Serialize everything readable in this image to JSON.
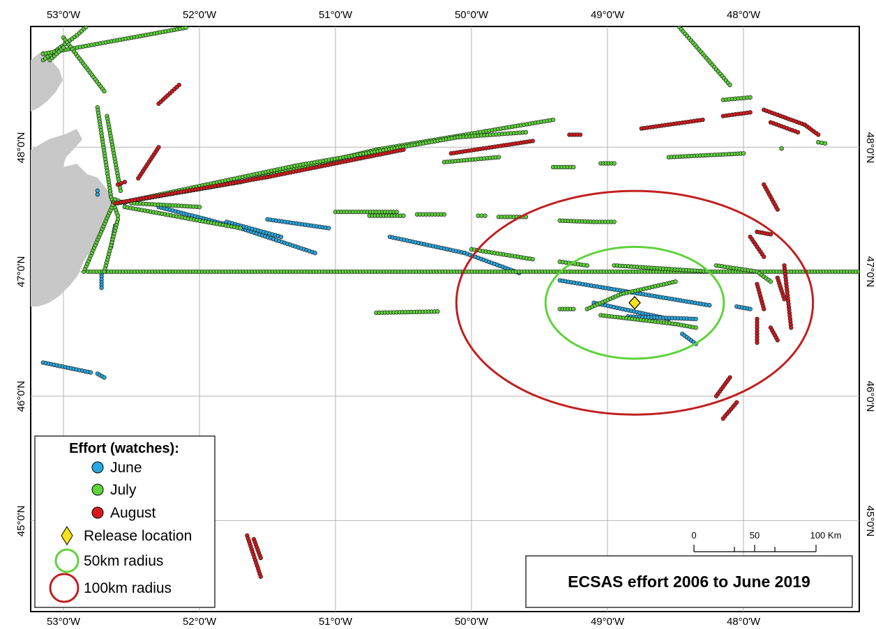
{
  "title": "ECSAS effort 2006 to June 2019",
  "colors": {
    "june": "#2aa7de",
    "july": "#5ed33a",
    "august": "#d7191c",
    "release": "#f7e21a",
    "radius50": "#5ed33a",
    "radius100": "#c0201f",
    "land": "#c8c8c8",
    "grid": "#b4b4b4"
  },
  "axes": {
    "top_lon_labels": [
      "53°0'W",
      "52°0'W",
      "51°0'W",
      "50°0'W",
      "49°0'W",
      "48°0'W"
    ],
    "bottom_lon_labels": [
      "53°0'W",
      "52°0'W",
      "51°0'W",
      "50°0'W",
      "49°0'W",
      "48°0'W"
    ],
    "left_lat_labels": [
      "48°0'N",
      "47°0'N",
      "46°0'N",
      "45°0'N"
    ],
    "right_lat_labels": [
      "48°0'N",
      "47°0'N",
      "46°0'N",
      "45°0'N"
    ]
  },
  "legend": {
    "title": "Effort (watches):",
    "june_label": "June",
    "july_label": "July",
    "august_label": "August",
    "release_label": "Release location",
    "radius50_label": "50km radius",
    "radius100_label": "100km radius"
  },
  "scalebar": {
    "labels": [
      "0",
      "50",
      "100 Km"
    ]
  },
  "release_location": {
    "lon": -48.8,
    "lat": 46.75
  },
  "radii_km": [
    50,
    100
  ],
  "tracks": {
    "june": [
      [
        [
          -52.3,
          47.52
        ],
        [
          -51.7,
          47.35
        ],
        [
          -51.15,
          47.15
        ]
      ],
      [
        [
          -51.8,
          47.4
        ],
        [
          -51.4,
          47.28
        ]
      ],
      [
        [
          -51.5,
          47.42
        ],
        [
          -51.05,
          47.35
        ]
      ],
      [
        [
          -50.6,
          47.28
        ],
        [
          -50.05,
          47.15
        ],
        [
          -49.65,
          46.99
        ]
      ],
      [
        [
          -49.35,
          46.93
        ],
        [
          -48.25,
          46.73
        ]
      ],
      [
        [
          -49.1,
          46.75
        ],
        [
          -48.55,
          46.62
        ]
      ],
      [
        [
          -48.85,
          46.64
        ],
        [
          -48.35,
          46.62
        ]
      ],
      [
        [
          -48.45,
          46.5
        ],
        [
          -48.35,
          46.42
        ]
      ],
      [
        [
          -48.05,
          46.72
        ],
        [
          -47.95,
          46.7
        ]
      ],
      [
        [
          -53.15,
          46.27
        ],
        [
          -52.8,
          46.19
        ]
      ],
      [
        [
          -52.75,
          46.18
        ],
        [
          -52.7,
          46.15
        ]
      ],
      [
        [
          -52.72,
          46.98
        ],
        [
          -52.72,
          46.87
        ]
      ],
      [
        [
          -52.62,
          47.37
        ],
        [
          -52.65,
          47.2
        ]
      ],
      [
        [
          -52.75,
          47.65
        ],
        [
          -52.75,
          47.62
        ]
      ]
    ],
    "july": [
      [
        [
          -53.15,
          48.7
        ],
        [
          -52.9,
          48.9
        ],
        [
          -52.8,
          49.0
        ]
      ],
      [
        [
          -53.15,
          48.75
        ],
        [
          -52.1,
          48.96
        ]
      ],
      [
        [
          -53.0,
          48.88
        ],
        [
          -52.7,
          48.45
        ]
      ],
      [
        [
          -53.1,
          48.7
        ],
        [
          -53.0,
          48.8
        ]
      ],
      [
        [
          -52.75,
          48.32
        ],
        [
          -52.65,
          47.6
        ],
        [
          -52.6,
          47.45
        ]
      ],
      [
        [
          -52.68,
          48.25
        ],
        [
          -52.58,
          47.65
        ]
      ],
      [
        [
          -52.85,
          47.0
        ],
        [
          -52.62,
          47.58
        ],
        [
          -52.55,
          47.55
        ]
      ],
      [
        [
          -52.6,
          47.55
        ],
        [
          -51.7,
          47.72
        ],
        [
          -50.7,
          47.98
        ],
        [
          -49.4,
          48.22
        ]
      ],
      [
        [
          -52.55,
          47.56
        ],
        [
          -51.3,
          47.85
        ],
        [
          -50.1,
          48.08
        ],
        [
          -49.6,
          48.12
        ]
      ],
      [
        [
          -52.5,
          47.55
        ],
        [
          -52.0,
          47.52
        ]
      ],
      [
        [
          -52.55,
          47.52
        ],
        [
          -51.7,
          47.35
        ]
      ],
      [
        [
          -52.82,
          47.0
        ],
        [
          -47.0,
          47.0
        ]
      ],
      [
        [
          -51.0,
          47.48
        ],
        [
          -50.55,
          47.48
        ]
      ],
      [
        [
          -50.75,
          47.45
        ],
        [
          -50.5,
          47.45
        ]
      ],
      [
        [
          -50.4,
          47.46
        ],
        [
          -50.2,
          47.46
        ]
      ],
      [
        [
          -49.95,
          47.45
        ],
        [
          -49.9,
          47.45
        ]
      ],
      [
        [
          -49.8,
          47.44
        ],
        [
          -49.6,
          47.44
        ]
      ],
      [
        [
          -49.35,
          47.41
        ],
        [
          -49.1,
          47.4
        ],
        [
          -48.95,
          47.4
        ]
      ],
      [
        [
          -50.0,
          47.18
        ],
        [
          -49.55,
          47.1
        ]
      ],
      [
        [
          -49.35,
          47.08
        ],
        [
          -49.15,
          47.05
        ]
      ],
      [
        [
          -50.7,
          46.67
        ],
        [
          -50.25,
          46.68
        ]
      ],
      [
        [
          -49.35,
          46.7
        ],
        [
          -49.25,
          46.7
        ]
      ],
      [
        [
          -49.15,
          46.7
        ],
        [
          -48.9,
          46.82
        ],
        [
          -48.5,
          46.92
        ]
      ],
      [
        [
          -49.05,
          46.65
        ],
        [
          -48.5,
          46.58
        ],
        [
          -48.35,
          46.55
        ]
      ],
      [
        [
          -48.95,
          47.05
        ],
        [
          -48.25,
          47.0
        ]
      ],
      [
        [
          -48.2,
          47.05
        ],
        [
          -47.9,
          47.0
        ],
        [
          -47.8,
          46.92
        ]
      ],
      [
        [
          -48.5,
          49.0
        ],
        [
          -48.1,
          48.5
        ]
      ],
      [
        [
          -48.55,
          47.92
        ],
        [
          -48.0,
          47.95
        ]
      ],
      [
        [
          -48.15,
          48.38
        ],
        [
          -47.95,
          48.4
        ]
      ],
      [
        [
          -50.2,
          47.88
        ],
        [
          -49.8,
          47.92
        ]
      ],
      [
        [
          -49.4,
          47.84
        ],
        [
          -49.25,
          47.84
        ]
      ],
      [
        [
          -49.05,
          47.87
        ],
        [
          -48.95,
          47.87
        ]
      ],
      [
        [
          -47.72,
          47.99
        ],
        [
          -47.72,
          47.99
        ]
      ],
      [
        [
          -47.45,
          48.04
        ],
        [
          -47.4,
          48.03
        ]
      ],
      [
        [
          -52.6,
          47.42
        ],
        [
          -52.7,
          47.0
        ]
      ]
    ],
    "august": [
      [
        [
          -52.62,
          47.55
        ],
        [
          -51.5,
          47.76
        ],
        [
          -50.5,
          47.98
        ]
      ],
      [
        [
          -52.3,
          48.35
        ],
        [
          -52.15,
          48.5
        ]
      ],
      [
        [
          -52.45,
          47.75
        ],
        [
          -52.3,
          48.0
        ]
      ],
      [
        [
          -52.6,
          47.7
        ],
        [
          -52.55,
          47.72
        ]
      ],
      [
        [
          -50.15,
          47.95
        ],
        [
          -49.55,
          48.05
        ]
      ],
      [
        [
          -49.28,
          48.1
        ],
        [
          -49.2,
          48.1
        ]
      ],
      [
        [
          -48.75,
          48.15
        ],
        [
          -48.3,
          48.22
        ]
      ],
      [
        [
          -48.15,
          48.25
        ],
        [
          -47.95,
          48.28
        ]
      ],
      [
        [
          -47.85,
          48.3
        ],
        [
          -47.55,
          48.18
        ],
        [
          -47.45,
          48.1
        ]
      ],
      [
        [
          -47.8,
          48.2
        ],
        [
          -47.6,
          48.12
        ]
      ],
      [
        [
          -47.85,
          47.7
        ],
        [
          -47.75,
          47.5
        ]
      ],
      [
        [
          -47.9,
          47.32
        ],
        [
          -47.8,
          47.3
        ]
      ],
      [
        [
          -47.95,
          47.28
        ],
        [
          -47.85,
          47.12
        ]
      ],
      [
        [
          -47.7,
          47.05
        ],
        [
          -47.65,
          46.55
        ]
      ],
      [
        [
          -47.75,
          46.95
        ],
        [
          -47.7,
          46.78
        ]
      ],
      [
        [
          -47.9,
          46.9
        ],
        [
          -47.85,
          46.7
        ]
      ],
      [
        [
          -47.9,
          46.62
        ],
        [
          -47.9,
          46.43
        ]
      ],
      [
        [
          -47.8,
          46.55
        ],
        [
          -47.75,
          46.45
        ]
      ],
      [
        [
          -48.1,
          46.15
        ],
        [
          -48.2,
          46.0
        ]
      ],
      [
        [
          -48.05,
          45.95
        ],
        [
          -48.15,
          45.82
        ]
      ],
      [
        [
          -51.65,
          44.88
        ],
        [
          -51.55,
          44.55
        ]
      ],
      [
        [
          -51.6,
          44.85
        ],
        [
          -51.55,
          44.7
        ]
      ]
    ]
  }
}
